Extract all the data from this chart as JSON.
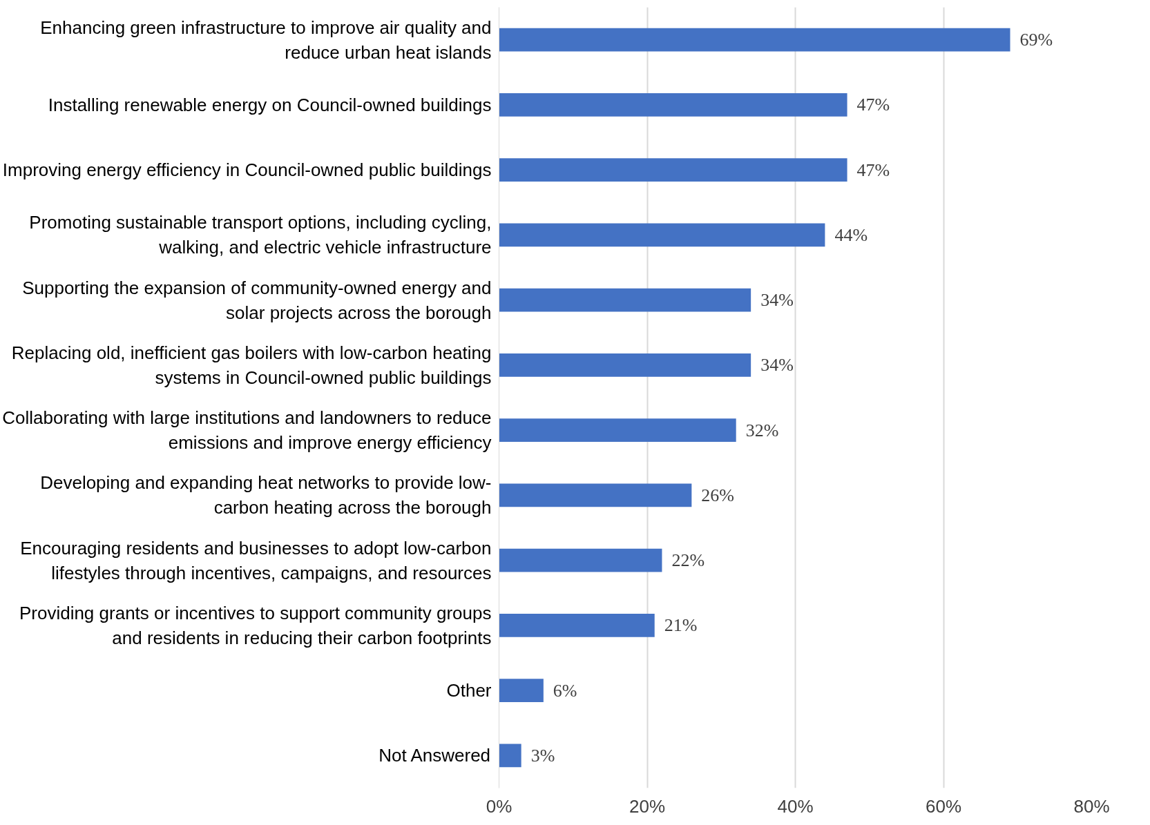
{
  "chart_data": {
    "type": "bar",
    "orientation": "horizontal",
    "categories": [
      "Enhancing green infrastructure to improve air quality and\nreduce urban heat islands",
      "Installing renewable energy on Council-owned buildings",
      "Improving energy efficiency in Council-owned public buildings",
      "Promoting sustainable transport options, including cycling,\nwalking, and electric vehicle infrastructure",
      "Supporting the expansion of community-owned energy and\nsolar projects across the borough",
      "Replacing old, inefficient gas boilers with low-carbon heating\nsystems in Council-owned public buildings",
      "Collaborating with large institutions and landowners to reduce\nemissions and improve energy efficiency",
      "Developing and expanding heat networks to provide low-\ncarbon heating across the borough",
      "Encouraging residents and businesses to adopt low-carbon\nlifestyles through incentives, campaigns, and resources",
      "Providing grants or incentives to support community groups\nand residents in reducing their carbon footprints",
      "Other",
      "Not Answered"
    ],
    "values": [
      69,
      47,
      47,
      44,
      34,
      34,
      32,
      26,
      22,
      21,
      6,
      3
    ],
    "value_labels": [
      "69%",
      "47%",
      "47%",
      "44%",
      "34%",
      "34%",
      "32%",
      "26%",
      "22%",
      "21%",
      "6%",
      "3%"
    ],
    "color": "#4472c4",
    "xlim": [
      0,
      80
    ],
    "xticks": [
      {
        "value": 0,
        "label": "0%"
      },
      {
        "value": 20,
        "label": "20%"
      },
      {
        "value": 40,
        "label": "40%"
      },
      {
        "value": 60,
        "label": "60%"
      },
      {
        "value": 80,
        "label": "80%"
      }
    ],
    "grid": "x"
  }
}
